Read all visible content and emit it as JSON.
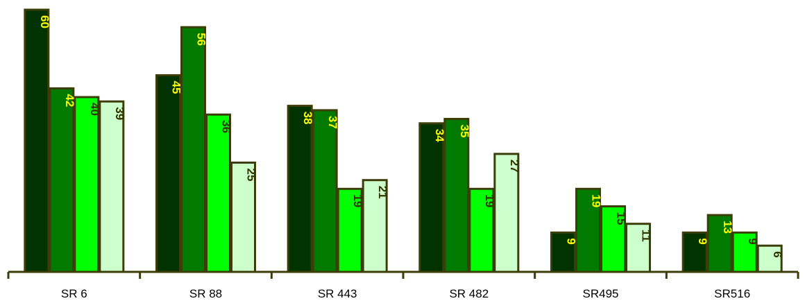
{
  "chart_data": {
    "type": "bar",
    "title": "",
    "xlabel": "",
    "ylabel": "",
    "categories": [
      "SR 6",
      "SR 88",
      "SR 443",
      "SR 482",
      "SR495",
      "SR516"
    ],
    "series": [
      {
        "values": [
          60,
          45,
          38,
          34,
          9,
          9
        ],
        "color": "#003300",
        "label_color": "#ffff00"
      },
      {
        "values": [
          42,
          56,
          37,
          35,
          19,
          13
        ],
        "color": "#007a00",
        "label_color": "#ffff00"
      },
      {
        "values": [
          40,
          36,
          19,
          19,
          15,
          9
        ],
        "color": "#00ff00",
        "label_color": "#333300"
      },
      {
        "values": [
          39,
          25,
          21,
          27,
          11,
          6
        ],
        "color": "#ccffcc",
        "label_color": "#333300"
      }
    ],
    "ylim": [
      0,
      62
    ],
    "grid": false,
    "legend": "none"
  }
}
